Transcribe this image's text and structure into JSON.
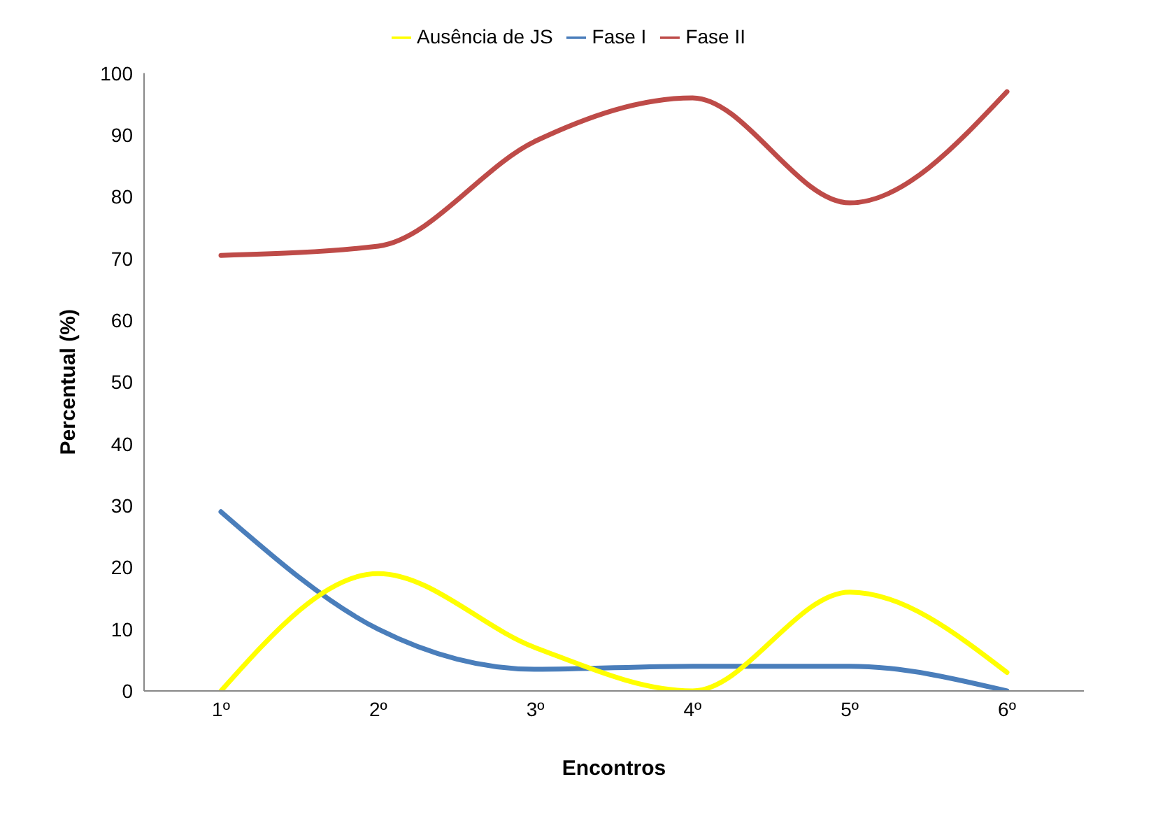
{
  "chart_data": {
    "type": "line",
    "xlabel": "Encontros",
    "ylabel": "Percentual (%)",
    "categories": [
      "1º",
      "2º",
      "3º",
      "4º",
      "5º",
      "6º"
    ],
    "series": [
      {
        "name": "Fase I",
        "color": "#4a7ebb",
        "values": [
          29,
          10,
          3.5,
          4,
          4,
          0
        ]
      },
      {
        "name": "Fase II",
        "color": "#be4b48",
        "values": [
          70.5,
          72,
          89,
          96,
          79,
          97
        ]
      },
      {
        "name": "Ausência de JS",
        "color": "#ffff00",
        "values": [
          0,
          19,
          7,
          0,
          16,
          3
        ]
      }
    ],
    "ylim": [
      0,
      100
    ],
    "yticks": [
      0,
      10,
      20,
      30,
      40,
      50,
      60,
      70,
      80,
      90,
      100
    ],
    "grid": false,
    "legend": "top",
    "marker": "none",
    "line_style": "solid"
  }
}
